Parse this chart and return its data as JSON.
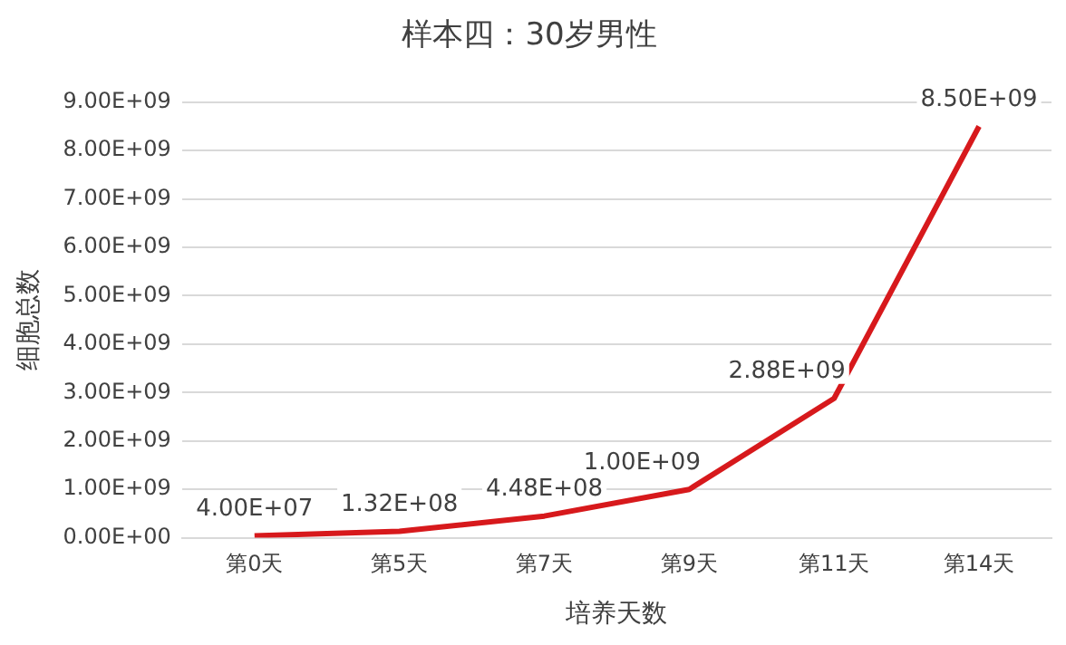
{
  "chart_data": {
    "type": "line",
    "title": "样本四：30岁男性",
    "xlabel": "培养天数",
    "ylabel": "细胞总数",
    "categories": [
      "第0天",
      "第5天",
      "第7天",
      "第9天",
      "第11天",
      "第14天"
    ],
    "series": [
      {
        "color": "#d7191c",
        "values": [
          40000000,
          132000000,
          448000000,
          1000000000,
          2880000000,
          8500000000
        ],
        "value_labels": [
          "4.00E+07",
          "1.32E+08",
          "4.48E+08",
          "1.00E+09",
          "2.88E+09",
          "8.50E+09"
        ]
      }
    ],
    "ylim": [
      0,
      9000000000
    ],
    "yticks": [
      {
        "value": 0,
        "label": "0.00E+00"
      },
      {
        "value": 1000000000,
        "label": "1.00E+09"
      },
      {
        "value": 2000000000,
        "label": "2.00E+09"
      },
      {
        "value": 3000000000,
        "label": "3.00E+09"
      },
      {
        "value": 4000000000,
        "label": "4.00E+09"
      },
      {
        "value": 5000000000,
        "label": "5.00E+09"
      },
      {
        "value": 6000000000,
        "label": "6.00E+09"
      },
      {
        "value": 7000000000,
        "label": "7.00E+09"
      },
      {
        "value": 8000000000,
        "label": "8.00E+09"
      },
      {
        "value": 9000000000,
        "label": "9.00E+09"
      }
    ],
    "grid": "y",
    "legend": false,
    "marker": "none",
    "line_style": "solid"
  }
}
